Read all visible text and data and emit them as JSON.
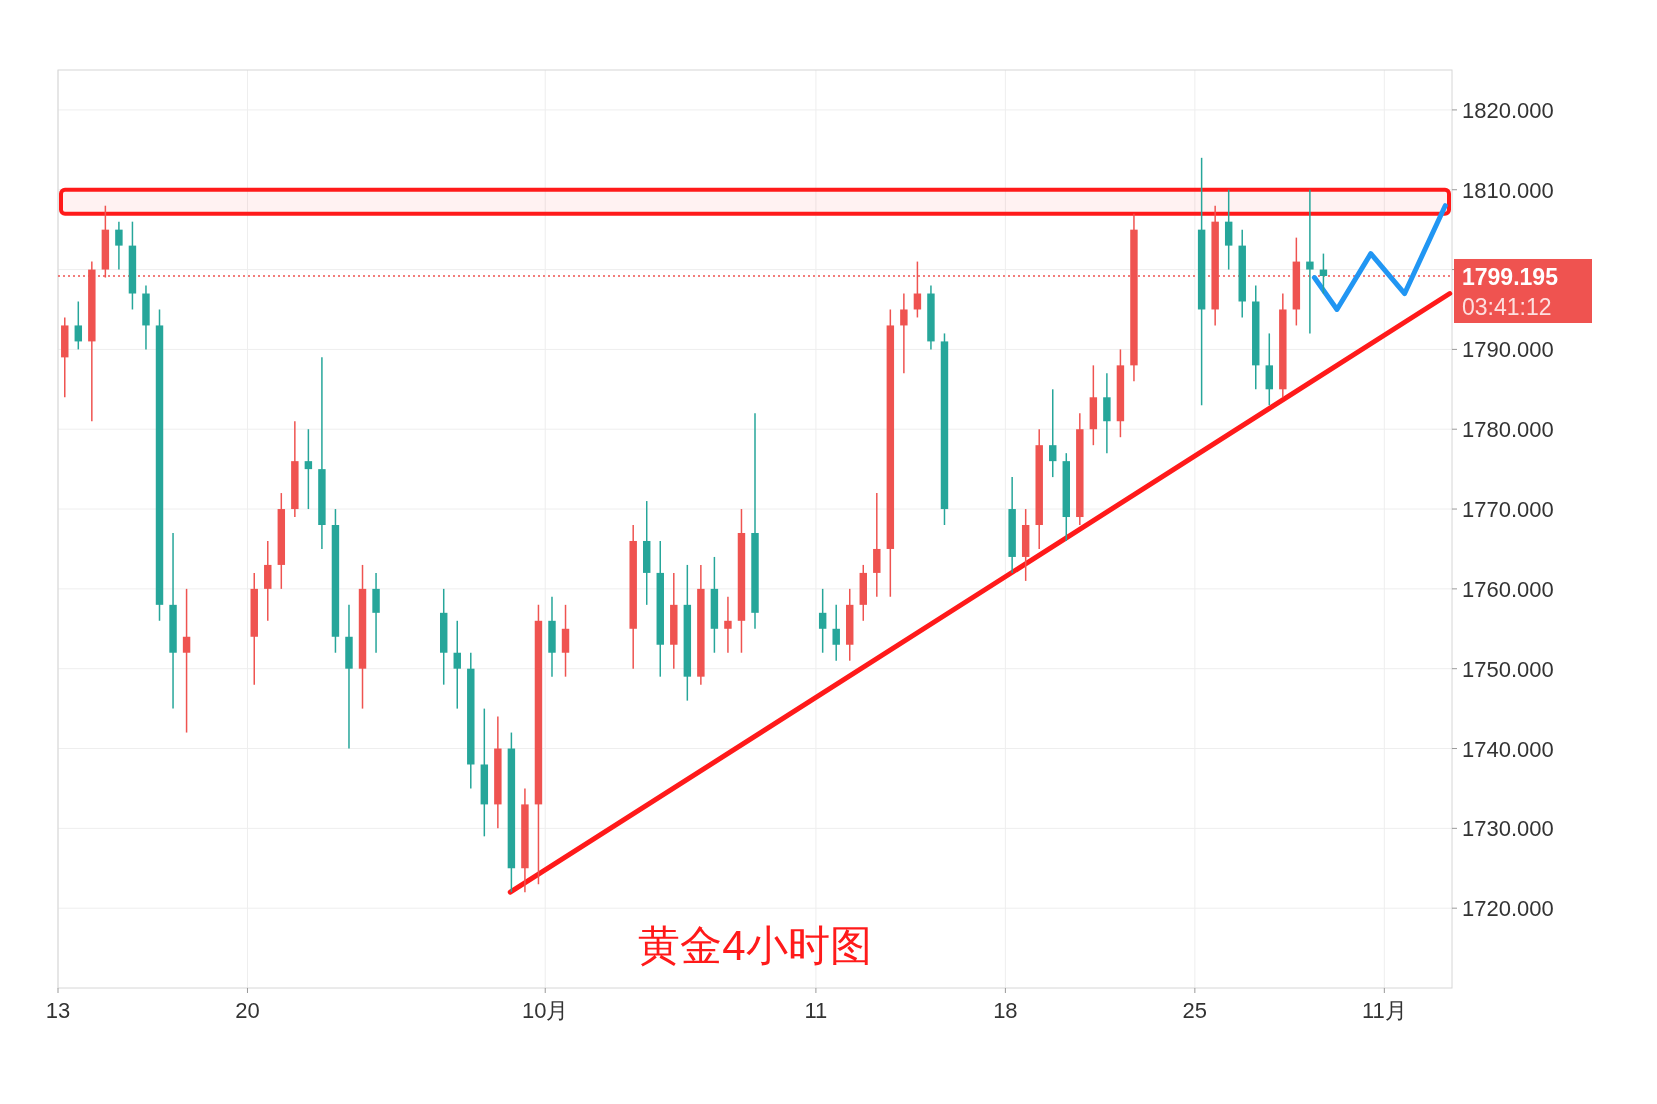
{
  "chart_data": {
    "type": "candlestick",
    "title": "黄金4小时图",
    "x": [
      "--09-13T06:00",
      "--09-13T18:00",
      "--09-14T06:00",
      "--09-14T18:00",
      "--09-15T06:00",
      "--09-15T18:00",
      "--09-16T06:00",
      "--09-16T18:00",
      "--09-17T06:00",
      "--09-17T18:00",
      "--09-20T06:00",
      "--09-20T18:00",
      "--09-21T06:00",
      "--09-21T18:00",
      "--09-22T06:00",
      "--09-22T18:00",
      "--09-23T06:00",
      "--09-23T18:00",
      "--09-24T06:00",
      "--09-24T18:00",
      "--09-27T06:00",
      "--09-27T18:00",
      "--09-28T06:00",
      "--09-28T18:00",
      "--09-29T06:00",
      "--09-29T18:00",
      "--09-30T06:00",
      "--09-30T18:00",
      "--10-01T06:00",
      "--10-01T18:00",
      "--10-04T06:00",
      "--10-04T18:00",
      "--10-05T06:00",
      "--10-05T18:00",
      "--10-06T06:00",
      "--10-06T18:00",
      "--10-07T06:00",
      "--10-07T18:00",
      "--10-08T06:00",
      "--10-08T18:00",
      "--10-11T06:00",
      "--10-11T18:00",
      "--10-12T06:00",
      "--10-12T18:00",
      "--10-13T06:00",
      "--10-13T18:00",
      "--10-14T06:00",
      "--10-14T18:00",
      "--10-15T06:00",
      "--10-15T18:00",
      "--10-18T06:00",
      "--10-18T18:00",
      "--10-19T06:00",
      "--10-19T18:00",
      "--10-20T06:00",
      "--10-20T18:00",
      "--10-21T06:00",
      "--10-21T18:00",
      "--10-22T06:00",
      "--10-22T18:00",
      "--10-25T06:00",
      "--10-25T18:00",
      "--10-26T06:00",
      "--10-26T18:00",
      "--10-27T06:00",
      "--10-27T18:00",
      "--10-28T06:00",
      "--10-28T18:00",
      "--10-29T06:00",
      "--10-29T18:00"
    ],
    "ohlc": [
      [
        1789,
        1794,
        1784,
        1793
      ],
      [
        1793,
        1796,
        1790,
        1791
      ],
      [
        1791,
        1801,
        1781,
        1800
      ],
      [
        1800,
        1808,
        1799,
        1805
      ],
      [
        1805,
        1806,
        1800,
        1803
      ],
      [
        1803,
        1806,
        1795,
        1797
      ],
      [
        1797,
        1798,
        1790,
        1793
      ],
      [
        1793,
        1795,
        1756,
        1758
      ],
      [
        1758,
        1767,
        1745,
        1752
      ],
      [
        1752,
        1760,
        1742,
        1754
      ],
      [
        1754,
        1762,
        1748,
        1760
      ],
      [
        1760,
        1766,
        1756,
        1763
      ],
      [
        1763,
        1772,
        1760,
        1770
      ],
      [
        1770,
        1781,
        1769,
        1776
      ],
      [
        1776,
        1780,
        1770,
        1775
      ],
      [
        1775,
        1789,
        1765,
        1768
      ],
      [
        1768,
        1770,
        1752,
        1754
      ],
      [
        1754,
        1758,
        1740,
        1750
      ],
      [
        1750,
        1763,
        1745,
        1760
      ],
      [
        1760,
        1762,
        1752,
        1757
      ],
      [
        1757,
        1760,
        1748,
        1752
      ],
      [
        1752,
        1756,
        1745,
        1750
      ],
      [
        1750,
        1752,
        1735,
        1738
      ],
      [
        1738,
        1745,
        1729,
        1733
      ],
      [
        1733,
        1744,
        1730,
        1740
      ],
      [
        1740,
        1742,
        1722,
        1725
      ],
      [
        1725,
        1735,
        1722,
        1733
      ],
      [
        1733,
        1758,
        1723,
        1756
      ],
      [
        1756,
        1759,
        1749,
        1752
      ],
      [
        1752,
        1758,
        1749,
        1755
      ],
      [
        1755,
        1768,
        1750,
        1766
      ],
      [
        1766,
        1771,
        1758,
        1762
      ],
      [
        1762,
        1766,
        1749,
        1753
      ],
      [
        1753,
        1762,
        1750,
        1758
      ],
      [
        1758,
        1763,
        1746,
        1749
      ],
      [
        1749,
        1763,
        1748,
        1760
      ],
      [
        1760,
        1764,
        1752,
        1755
      ],
      [
        1755,
        1759,
        1752,
        1756
      ],
      [
        1756,
        1770,
        1752,
        1767
      ],
      [
        1767,
        1782,
        1755,
        1757
      ],
      [
        1757,
        1760,
        1752,
        1755
      ],
      [
        1755,
        1758,
        1751,
        1753
      ],
      [
        1753,
        1760,
        1751,
        1758
      ],
      [
        1758,
        1763,
        1756,
        1762
      ],
      [
        1762,
        1772,
        1759,
        1765
      ],
      [
        1765,
        1795,
        1759,
        1793
      ],
      [
        1793,
        1797,
        1787,
        1795
      ],
      [
        1795,
        1801,
        1794,
        1797
      ],
      [
        1797,
        1798,
        1790,
        1791
      ],
      [
        1791,
        1792,
        1768,
        1770
      ],
      [
        1770,
        1774,
        1762,
        1764
      ],
      [
        1764,
        1770,
        1761,
        1768
      ],
      [
        1768,
        1780,
        1765,
        1778
      ],
      [
        1778,
        1785,
        1774,
        1776
      ],
      [
        1776,
        1777,
        1766,
        1769
      ],
      [
        1769,
        1782,
        1768,
        1780
      ],
      [
        1780,
        1788,
        1778,
        1784
      ],
      [
        1784,
        1787,
        1777,
        1781
      ],
      [
        1781,
        1790,
        1779,
        1788
      ],
      [
        1788,
        1807,
        1786,
        1805
      ],
      [
        1805,
        1814,
        1783,
        1795
      ],
      [
        1795,
        1808,
        1793,
        1806
      ],
      [
        1806,
        1810,
        1800,
        1803
      ],
      [
        1803,
        1805,
        1794,
        1796
      ],
      [
        1796,
        1798,
        1785,
        1788
      ],
      [
        1788,
        1792,
        1783,
        1785
      ],
      [
        1785,
        1797,
        1784,
        1795
      ],
      [
        1795,
        1804,
        1793,
        1801
      ],
      [
        1801,
        1810,
        1792,
        1800
      ],
      [
        1800,
        1802,
        1797,
        1799.195
      ]
    ],
    "colors": [
      "#ef5350",
      "#26a69a",
      "#ef5350",
      "#ef5350",
      "#26a69a",
      "#26a69a",
      "#26a69a",
      "#26a69a",
      "#26a69a",
      "#ef5350",
      "#ef5350",
      "#ef5350",
      "#ef5350",
      "#ef5350",
      "#26a69a",
      "#26a69a",
      "#26a69a",
      "#26a69a",
      "#ef5350",
      "#26a69a",
      "#26a69a",
      "#26a69a",
      "#26a69a",
      "#26a69a",
      "#ef5350",
      "#26a69a",
      "#ef5350",
      "#ef5350",
      "#26a69a",
      "#ef5350",
      "#ef5350",
      "#26a69a",
      "#26a69a",
      "#ef5350",
      "#26a69a",
      "#ef5350",
      "#26a69a",
      "#ef5350",
      "#ef5350",
      "#26a69a",
      "#26a69a",
      "#26a69a",
      "#ef5350",
      "#ef5350",
      "#ef5350",
      "#ef5350",
      "#ef5350",
      "#ef5350",
      "#26a69a",
      "#26a69a",
      "#26a69a",
      "#ef5350",
      "#ef5350",
      "#26a69a",
      "#26a69a",
      "#ef5350",
      "#ef5350",
      "#26a69a",
      "#ef5350",
      "#ef5350",
      "#26a69a",
      "#ef5350",
      "#26a69a",
      "#26a69a",
      "#26a69a",
      "#26a69a",
      "#ef5350",
      "#ef5350",
      "#26a69a",
      "#26a69a"
    ],
    "series": [
      {
        "type": "line",
        "color": "#ff1a1a",
        "x": [
          "--09-29T17:00",
          "--11-03T10:00"
        ],
        "values": [
          1722,
          1797
        ]
      },
      {
        "type": "line",
        "color": "#2196f3",
        "x": [
          "--10-29T10:00",
          "--10-30T06:00",
          "--10-31T12:00",
          "--11-01T18:00",
          "--11-03T06:00"
        ],
        "values": [
          1799,
          1795,
          1802,
          1797,
          1808
        ]
      }
    ],
    "xlim": [
      "--09-13T00:00",
      "--11-03T12:00"
    ],
    "ylim": [
      1710,
      1825
    ],
    "xticks": [
      {
        "value": "--09-13",
        "label": "13"
      },
      {
        "value": "--09-20",
        "label": "20"
      },
      {
        "value": "--10-01",
        "label": "10月"
      },
      {
        "value": "--10-11",
        "label": "11"
      },
      {
        "value": "--10-18",
        "label": "18"
      },
      {
        "value": "--10-25",
        "label": "25"
      },
      {
        "value": "--11-01",
        "label": "11月"
      }
    ],
    "yticks": [
      {
        "value": 1720,
        "label": "1720.000"
      },
      {
        "value": 1730,
        "label": "1730.000"
      },
      {
        "value": 1740,
        "label": "1740.000"
      },
      {
        "value": 1750,
        "label": "1750.000"
      },
      {
        "value": 1760,
        "label": "1760.000"
      },
      {
        "value": 1770,
        "label": "1770.000"
      },
      {
        "value": 1780,
        "label": "1780.000"
      },
      {
        "value": 1790,
        "label": "1790.000"
      },
      {
        "value": 1800,
        "label": null
      },
      {
        "value": 1810,
        "label": "1810.000"
      },
      {
        "value": 1820,
        "label": "1820.000"
      }
    ],
    "bands": [
      {
        "axis": "y",
        "from": 1807,
        "to": 1810,
        "color": "#ff1a1a"
      }
    ],
    "ref_lines": [
      {
        "axis": "y",
        "value": 1799.195,
        "label": "1799.195",
        "color": "#ef5350",
        "line_style": "dotted"
      }
    ],
    "annotations": [
      "03:41:12"
    ],
    "grid": true
  }
}
